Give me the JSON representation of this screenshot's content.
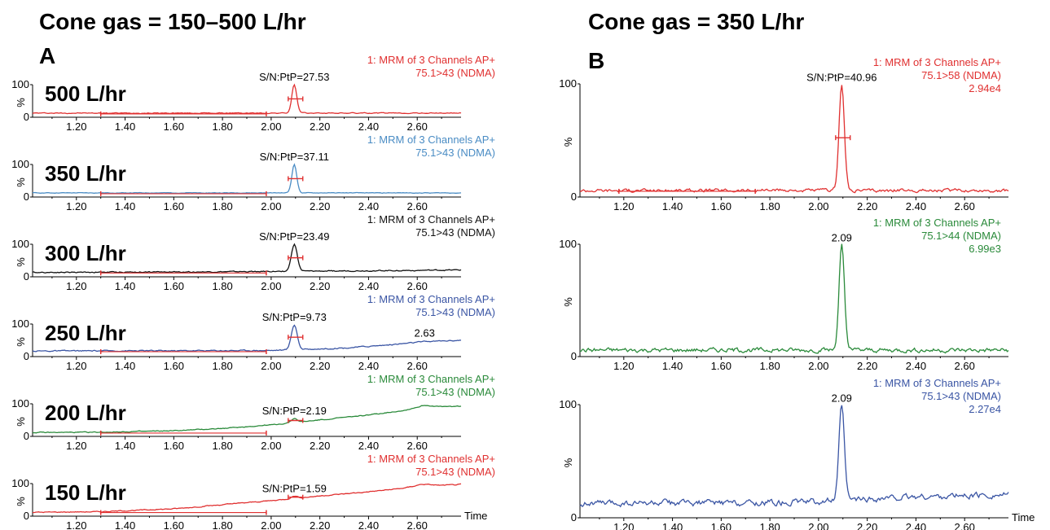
{
  "titles": {
    "left": "Cone gas = 150–500 L/hr",
    "right": "Cone gas = 350 L/hr"
  },
  "panels": [
    {
      "letter": "A"
    },
    {
      "letter": "B"
    }
  ],
  "colors": {
    "red": "#e03030",
    "blue_light": "#4a8cc4",
    "black": "#111111",
    "blue_dark": "#3a55a4",
    "green": "#2a8a3a"
  },
  "chart_data": [
    {
      "type": "line",
      "panel": "A",
      "condition": "500 L/hr",
      "color": "#e03030",
      "info": [
        "1: MRM of 3 Channels AP+",
        "75.1>43 (NDMA)"
      ],
      "annotation": "S/N:PtP=27.53",
      "xlabel": "",
      "ylabel": "%",
      "xlim": [
        1.02,
        2.78
      ],
      "ylim": [
        0,
        100
      ],
      "yticks": [
        "100",
        "0"
      ],
      "xticks": [
        "1.20",
        "1.40",
        "1.60",
        "1.80",
        "2.00",
        "2.20",
        "2.40",
        "2.60"
      ],
      "noise_range": [
        1.3,
        1.98
      ],
      "signal_bar": [
        2.07,
        2.13
      ],
      "baseline": [
        [
          1.02,
          3
        ],
        [
          2.78,
          3
        ]
      ],
      "peaks": [
        {
          "x": 2.095,
          "h": 97,
          "w": 0.01
        }
      ],
      "noise": 1.2
    },
    {
      "type": "line",
      "panel": "A",
      "condition": "350 L/hr",
      "color": "#4a8cc4",
      "info": [
        "1: MRM of 3 Channels AP+",
        "75.1>43 (NDMA)"
      ],
      "annotation": "S/N:PtP=37.11",
      "xlabel": "",
      "ylabel": "%",
      "xlim": [
        1.02,
        2.78
      ],
      "ylim": [
        0,
        100
      ],
      "yticks": [
        "100",
        "0"
      ],
      "xticks": [
        "1.20",
        "1.40",
        "1.60",
        "1.80",
        "2.00",
        "2.20",
        "2.40",
        "2.60"
      ],
      "noise_range": [
        1.3,
        1.98
      ],
      "signal_bar": [
        2.07,
        2.13
      ],
      "baseline": [
        [
          1.02,
          3
        ],
        [
          2.78,
          3
        ]
      ],
      "peaks": [
        {
          "x": 2.095,
          "h": 97,
          "w": 0.01
        }
      ],
      "noise": 0.8
    },
    {
      "type": "line",
      "panel": "A",
      "condition": "300 L/hr",
      "color": "#111111",
      "info": [
        "1: MRM of 3 Channels AP+",
        "75.1>43 (NDMA)"
      ],
      "annotation": "S/N:PtP=23.49",
      "xlabel": "",
      "ylabel": "%",
      "xlim": [
        1.02,
        2.78
      ],
      "ylim": [
        0,
        100
      ],
      "yticks": [
        "100",
        "0"
      ],
      "xticks": [
        "1.20",
        "1.40",
        "1.60",
        "1.80",
        "2.00",
        "2.20",
        "2.40",
        "2.60"
      ],
      "noise_range": [
        1.3,
        1.98
      ],
      "signal_bar": [
        2.07,
        2.13
      ],
      "baseline": [
        [
          1.02,
          4
        ],
        [
          1.8,
          6
        ],
        [
          2.78,
          12
        ]
      ],
      "peaks": [
        {
          "x": 2.095,
          "h": 92,
          "w": 0.012
        }
      ],
      "noise": 1.5
    },
    {
      "type": "line",
      "panel": "A",
      "condition": "250 L/hr",
      "color": "#3a55a4",
      "info": [
        "1: MRM of 3 Channels AP+",
        "75.1>43 (NDMA)"
      ],
      "annotation": "S/N:PtP=9.73",
      "annotation2": "2.63",
      "annotation2_x": 2.63,
      "xlabel": "",
      "ylabel": "%",
      "xlim": [
        1.02,
        2.78
      ],
      "ylim": [
        0,
        100
      ],
      "yticks": [
        "100",
        "0"
      ],
      "xticks": [
        "1.20",
        "1.40",
        "1.60",
        "1.80",
        "2.00",
        "2.20",
        "2.40",
        "2.60"
      ],
      "noise_range": [
        1.3,
        1.98
      ],
      "signal_bar": [
        2.07,
        2.13
      ],
      "baseline": [
        [
          1.02,
          8
        ],
        [
          1.6,
          9
        ],
        [
          2.0,
          10
        ],
        [
          2.3,
          18
        ],
        [
          2.5,
          30
        ],
        [
          2.63,
          40
        ],
        [
          2.78,
          45
        ]
      ],
      "peaks": [
        {
          "x": 2.095,
          "h": 85,
          "w": 0.012
        }
      ],
      "noise": 1.6
    },
    {
      "type": "line",
      "panel": "A",
      "condition": "200 L/hr",
      "color": "#2a8a3a",
      "info": [
        "1: MRM of 3 Channels AP+",
        "75.1>43 (NDMA)"
      ],
      "annotation": "S/N:PtP=2.19",
      "xlabel": "",
      "ylabel": "%",
      "xlim": [
        1.02,
        2.78
      ],
      "ylim": [
        0,
        100
      ],
      "yticks": [
        "100",
        "0"
      ],
      "xticks": [
        "1.20",
        "1.40",
        "1.60",
        "1.80",
        "2.00",
        "2.20",
        "2.40",
        "2.60"
      ],
      "noise_range": [
        1.3,
        1.98
      ],
      "signal_bar": [
        2.07,
        2.13
      ],
      "baseline": [
        [
          1.02,
          2
        ],
        [
          1.3,
          3
        ],
        [
          1.6,
          8
        ],
        [
          1.8,
          16
        ],
        [
          2.0,
          28
        ],
        [
          2.2,
          45
        ],
        [
          2.4,
          62
        ],
        [
          2.55,
          78
        ],
        [
          2.63,
          95
        ],
        [
          2.7,
          90
        ],
        [
          2.78,
          92
        ]
      ],
      "peaks": [
        {
          "x": 2.095,
          "h": 14,
          "w": 0.012
        }
      ],
      "noise": 1.2
    },
    {
      "type": "line",
      "panel": "A",
      "condition": "150 L/hr",
      "color": "#e03030",
      "info": [
        "1: MRM of 3 Channels AP+",
        "75.1>43 (NDMA)"
      ],
      "annotation": "S/N:PtP=1.59",
      "xlabel": "Time",
      "ylabel": "%",
      "xlim": [
        1.02,
        2.78
      ],
      "ylim": [
        0,
        100
      ],
      "yticks": [
        "100",
        "0"
      ],
      "xticks": [
        "1.20",
        "1.40",
        "1.60",
        "1.80",
        "2.00",
        "2.20",
        "2.40",
        "2.60"
      ],
      "noise_range": [
        1.3,
        1.98
      ],
      "signal_bar": [
        2.07,
        2.13
      ],
      "baseline": [
        [
          1.02,
          2
        ],
        [
          1.3,
          4
        ],
        [
          1.6,
          14
        ],
        [
          1.8,
          28
        ],
        [
          2.0,
          42
        ],
        [
          2.2,
          58
        ],
        [
          2.4,
          72
        ],
        [
          2.55,
          85
        ],
        [
          2.62,
          98
        ],
        [
          2.7,
          94
        ],
        [
          2.78,
          97
        ]
      ],
      "peaks": [
        {
          "x": 2.095,
          "h": 8,
          "w": 0.012
        }
      ],
      "noise": 1.3
    },
    {
      "type": "line",
      "panel": "B",
      "condition": "",
      "color": "#e03030",
      "info": [
        "1: MRM of 3 Channels AP+",
        "75.1>58 (NDMA)",
        "2.94e4"
      ],
      "annotation": "S/N:PtP=40.96",
      "xlabel": "",
      "ylabel": "%",
      "xlim": [
        1.02,
        2.78
      ],
      "ylim": [
        0,
        100
      ],
      "yticks": [
        "100",
        "0"
      ],
      "xticks": [
        "1.20",
        "1.40",
        "1.60",
        "1.80",
        "2.00",
        "2.20",
        "2.40",
        "2.60"
      ],
      "noise_range": [
        1.18,
        1.74
      ],
      "signal_bar": [
        2.07,
        2.13
      ],
      "baseline": [
        [
          1.02,
          3
        ],
        [
          2.78,
          3
        ]
      ],
      "peaks": [
        {
          "x": 2.095,
          "h": 96,
          "w": 0.011
        }
      ],
      "noise": 1.2
    },
    {
      "type": "line",
      "panel": "B",
      "condition": "",
      "color": "#2a8a3a",
      "info": [
        "1: MRM of 3 Channels AP+",
        "75.1>44 (NDMA)",
        "6.99e3"
      ],
      "annotation": "2.09",
      "xlabel": "",
      "ylabel": "%",
      "xlim": [
        1.02,
        2.78
      ],
      "ylim": [
        0,
        100
      ],
      "yticks": [
        "100",
        "0"
      ],
      "xticks": [
        "1.20",
        "1.40",
        "1.60",
        "1.80",
        "2.00",
        "2.20",
        "2.40",
        "2.60"
      ],
      "baseline": [
        [
          1.02,
          3
        ],
        [
          2.78,
          3
        ]
      ],
      "peaks": [
        {
          "x": 2.095,
          "h": 96,
          "w": 0.011
        }
      ],
      "noise": 1.6
    },
    {
      "type": "line",
      "panel": "B",
      "condition": "",
      "color": "#3a55a4",
      "info": [
        "1: MRM of 3 Channels AP+",
        "75.1>43 (NDMA)",
        "2.27e4"
      ],
      "annotation": "2.09",
      "xlabel": "Time",
      "ylabel": "%",
      "xlim": [
        1.02,
        2.78
      ],
      "ylim": [
        0,
        100
      ],
      "yticks": [
        "100",
        "0"
      ],
      "xticks": [
        "1.20",
        "1.40",
        "1.60",
        "1.80",
        "2.00",
        "2.20",
        "2.40",
        "2.60"
      ],
      "baseline": [
        [
          1.02,
          10
        ],
        [
          1.8,
          11
        ],
        [
          2.0,
          12
        ],
        [
          2.2,
          14
        ],
        [
          2.4,
          16
        ],
        [
          2.78,
          18
        ]
      ],
      "peaks": [
        {
          "x": 2.095,
          "h": 86,
          "w": 0.011
        }
      ],
      "noise": 2.2
    }
  ]
}
